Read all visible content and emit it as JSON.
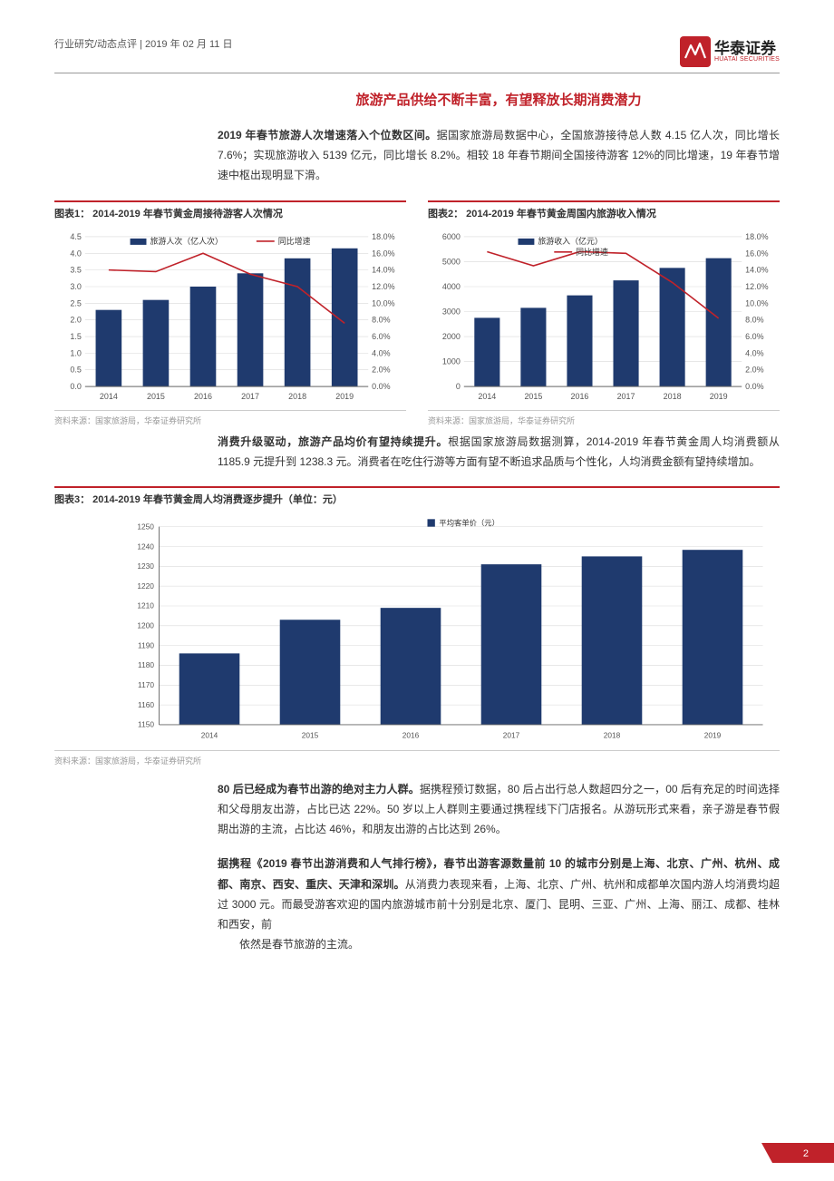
{
  "header": {
    "breadcrumb": "行业研究/动态点评",
    "date": "2019 年 02 月 11 日",
    "logo_cn": "华泰证券",
    "logo_en": "HUATAI SECURITIES"
  },
  "section_title": "旅游产品供给不断丰富，有望释放长期消费潜力",
  "para1_bold": "2019 年春节旅游人次增速落入个位数区间。",
  "para1_rest": "据国家旅游局数据中心，全国旅游接待总人数 4.15 亿人次，同比增长 7.6%；实现旅游收入 5139 亿元，同比增长 8.2%。相较 18 年春节期间全国接待游客 12%的同比增速，19 年春节增速中枢出现明显下滑。",
  "chart1": {
    "title": "图表1：  2014-2019 年春节黄金周接待游客人次情况",
    "type": "bar+line",
    "categories": [
      "2014",
      "2015",
      "2016",
      "2017",
      "2018",
      "2019"
    ],
    "bar_values": [
      2.3,
      2.6,
      3.0,
      3.4,
      3.85,
      4.15
    ],
    "line_values": [
      14.0,
      13.8,
      16.0,
      13.5,
      12.0,
      7.6
    ],
    "y1_min": 0,
    "y1_max": 4.5,
    "y1_step": 0.5,
    "y2_min": 0,
    "y2_max": 18,
    "y2_step": 2,
    "bar_color": "#1f3a6e",
    "line_color": "#c0222a",
    "bar_legend": "旅游人次（亿人次）",
    "line_legend": "同比增速",
    "grid_color": "#d9d9d9",
    "axis_color": "#666",
    "label_fontsize": 9,
    "source": "资料来源：国家旅游局，华泰证券研究所"
  },
  "chart2": {
    "title": "图表2：  2014-2019 年春节黄金周国内旅游收入情况",
    "type": "bar+line",
    "categories": [
      "2014",
      "2015",
      "2016",
      "2017",
      "2018",
      "2019"
    ],
    "bar_values": [
      2750,
      3150,
      3650,
      4250,
      4750,
      5139
    ],
    "line_values": [
      16.2,
      14.5,
      16.2,
      16.0,
      12.5,
      8.2
    ],
    "y1_min": 0,
    "y1_max": 6000,
    "y1_step": 1000,
    "y2_min": 0,
    "y2_max": 18,
    "y2_step": 2,
    "bar_color": "#1f3a6e",
    "line_color": "#c0222a",
    "bar_legend": "旅游收入（亿元）",
    "line_legend": "同比增速",
    "grid_color": "#d9d9d9",
    "axis_color": "#666",
    "label_fontsize": 9,
    "source": "资料来源：国家旅游局，华泰证券研究所"
  },
  "para2_bold": "消费升级驱动，旅游产品均价有望持续提升。",
  "para2_rest": "根据国家旅游局数据测算，2014-2019 年春节黄金周人均消费额从 1185.9 元提升到 1238.3 元。消费者在吃住行游等方面有望不断追求品质与个性化，人均消费金额有望持续增加。",
  "chart3": {
    "title": "图表3：  2014-2019 年春节黄金周人均消费逐步提升（单位：元）",
    "type": "bar",
    "categories": [
      "2014",
      "2015",
      "2016",
      "2017",
      "2018",
      "2019"
    ],
    "values": [
      1186,
      1203,
      1209,
      1231,
      1235,
      1238.3
    ],
    "y_min": 1150,
    "y_max": 1250,
    "y_step": 10,
    "bar_color": "#1f3a6e",
    "legend": "平均客单价（元）",
    "grid_color": "#d9d9d9",
    "axis_color": "#666",
    "label_fontsize": 9,
    "source": "资料来源：国家旅游局，华泰证券研究所"
  },
  "para3_bold": "80 后已经成为春节出游的绝对主力人群。",
  "para3_rest": "据携程预订数据，80 后占出行总人数超四分之一，00 后有充足的时间选择和父母朋友出游，占比已达 22%。50 岁以上人群则主要通过携程线下门店报名。从游玩形式来看，亲子游是春节假期出游的主流，占比达 46%，和朋友出游的占比达到 26%。",
  "para4_bold": "据携程《2019 春节出游消费和人气排行榜》，春节出游客源数量前 10 的城市分别是上海、北京、广州、杭州、成都、南京、西安、重庆、天津和深圳。",
  "para4_rest": "从消费力表现来看，上海、北京、广州、杭州和成都单次国内游人均消费均超过 3000 元。而最受游客欢迎的国内旅游城市前十分别是北京、厦门、昆明、三亚、广州、上海、丽江、成都、桂林和西安，前",
  "para4_tail": "依然是春节旅游的主流。",
  "page_number": "2",
  "colors": {
    "brand_red": "#c0222a",
    "brand_navy": "#1f3a6e",
    "text": "#333333",
    "muted": "#999999"
  }
}
